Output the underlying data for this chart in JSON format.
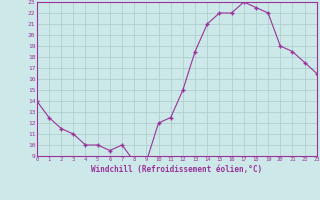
{
  "x": [
    0,
    1,
    2,
    3,
    4,
    5,
    6,
    7,
    8,
    9,
    10,
    11,
    12,
    13,
    14,
    15,
    16,
    17,
    18,
    19,
    20,
    21,
    22,
    23
  ],
  "y": [
    14,
    12.5,
    11.5,
    11,
    10,
    10,
    9.5,
    10,
    8.5,
    8.5,
    12,
    12.5,
    15,
    18.5,
    21,
    22,
    22,
    23,
    22.5,
    22,
    19,
    18.5,
    17.5,
    16.5
  ],
  "line_color": "#993399",
  "marker_color": "#993399",
  "bg_color": "#cce8e8",
  "grid_color": "#aacccc",
  "axis_color": "#993399",
  "border_color": "#993399",
  "xlabel": "Windchill (Refroidissement éolien,°C)",
  "ylim": [
    9,
    23
  ],
  "xlim": [
    0,
    23
  ],
  "yticks": [
    9,
    10,
    11,
    12,
    13,
    14,
    15,
    16,
    17,
    18,
    19,
    20,
    21,
    22,
    23
  ],
  "xticks": [
    0,
    1,
    2,
    3,
    4,
    5,
    6,
    7,
    8,
    9,
    10,
    11,
    12,
    13,
    14,
    15,
    16,
    17,
    18,
    19,
    20,
    21,
    22,
    23
  ]
}
